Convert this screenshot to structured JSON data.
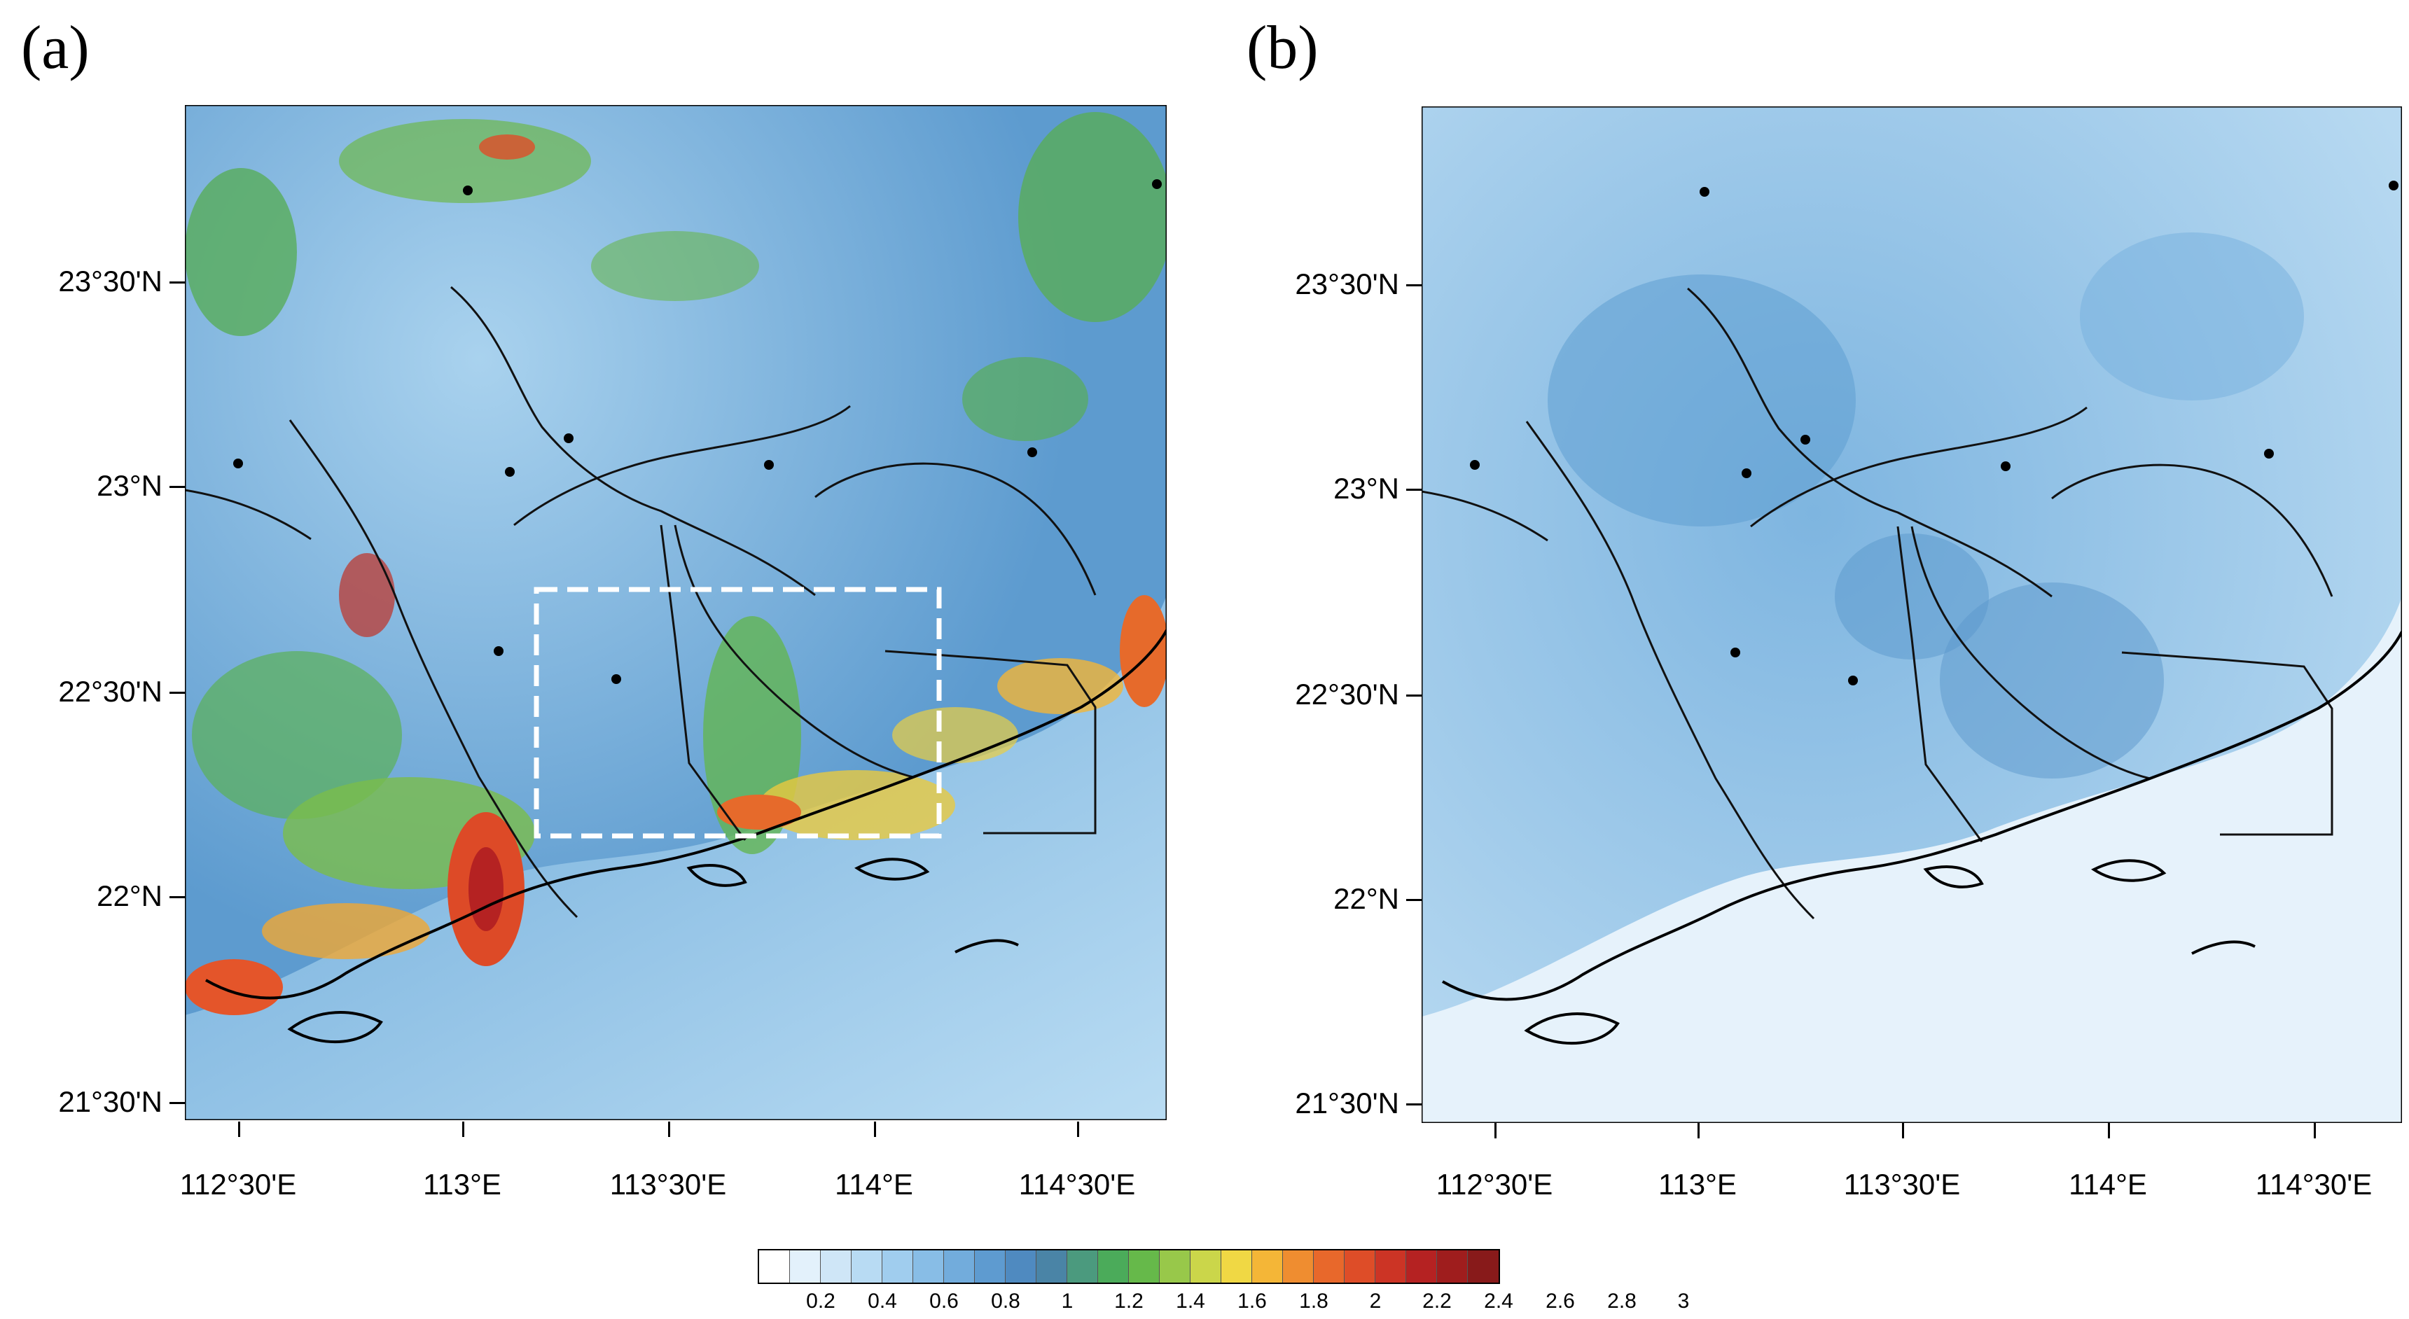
{
  "panels": [
    {
      "letter": "(a)"
    },
    {
      "letter": "(b)"
    }
  ],
  "y_ticks": [
    "23°30'N",
    "23°N",
    "22°30'N",
    "22°N",
    "21°30'N"
  ],
  "x_ticks": [
    "112°30'E",
    "113°E",
    "113°30'E",
    "114°E",
    "114°30'E"
  ],
  "colorbar": {
    "labels": [
      "0.2",
      "0.4",
      "0.6",
      "0.8",
      "1",
      "1.2",
      "1.4",
      "1.6",
      "1.8",
      "2",
      "2.2",
      "2.4",
      "2.6",
      "2.8",
      "3"
    ],
    "colors": [
      "#ffffff",
      "#e3f1fb",
      "#cfe6f7",
      "#b8dbf3",
      "#a0cdee",
      "#88bde6",
      "#72acdc",
      "#5e9bd0",
      "#4f8ac0",
      "#4a84a6",
      "#4b9a7e",
      "#4bab5a",
      "#66b94a",
      "#98c84a",
      "#cbd64a",
      "#f0d844",
      "#f4b637",
      "#ef8d30",
      "#e8682b",
      "#de4d28",
      "#cc3425",
      "#b52222",
      "#9f1d1d",
      "#881a1a"
    ]
  }
}
